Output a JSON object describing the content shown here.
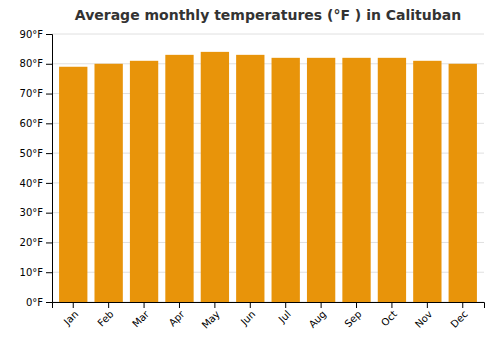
{
  "chart_data": {
    "type": "bar",
    "title": "Average monthly temperatures (°F ) in Calituban",
    "categories": [
      "Jan",
      "Feb",
      "Mar",
      "Apr",
      "May",
      "Jun",
      "Jul",
      "Aug",
      "Sep",
      "Oct",
      "Nov",
      "Dec"
    ],
    "values": [
      79.0,
      80.0,
      81.0,
      83.0,
      84.0,
      83.0,
      82.0,
      82.0,
      82.0,
      82.0,
      81.0,
      80.0
    ],
    "color": "#E8940A",
    "ylim": [
      0,
      90
    ],
    "yticks": [
      {
        "value": 0,
        "label": "0°F"
      },
      {
        "value": 10,
        "label": "10°F"
      },
      {
        "value": 20,
        "label": "20°F"
      },
      {
        "value": 30,
        "label": "30°F"
      },
      {
        "value": 40,
        "label": "40°F"
      },
      {
        "value": 50,
        "label": "50°F"
      },
      {
        "value": 60,
        "label": "60°F"
      },
      {
        "value": 70,
        "label": "70°F"
      },
      {
        "value": 80,
        "label": "80°F"
      },
      {
        "value": 90,
        "label": "90°F"
      }
    ],
    "grid": true
  }
}
